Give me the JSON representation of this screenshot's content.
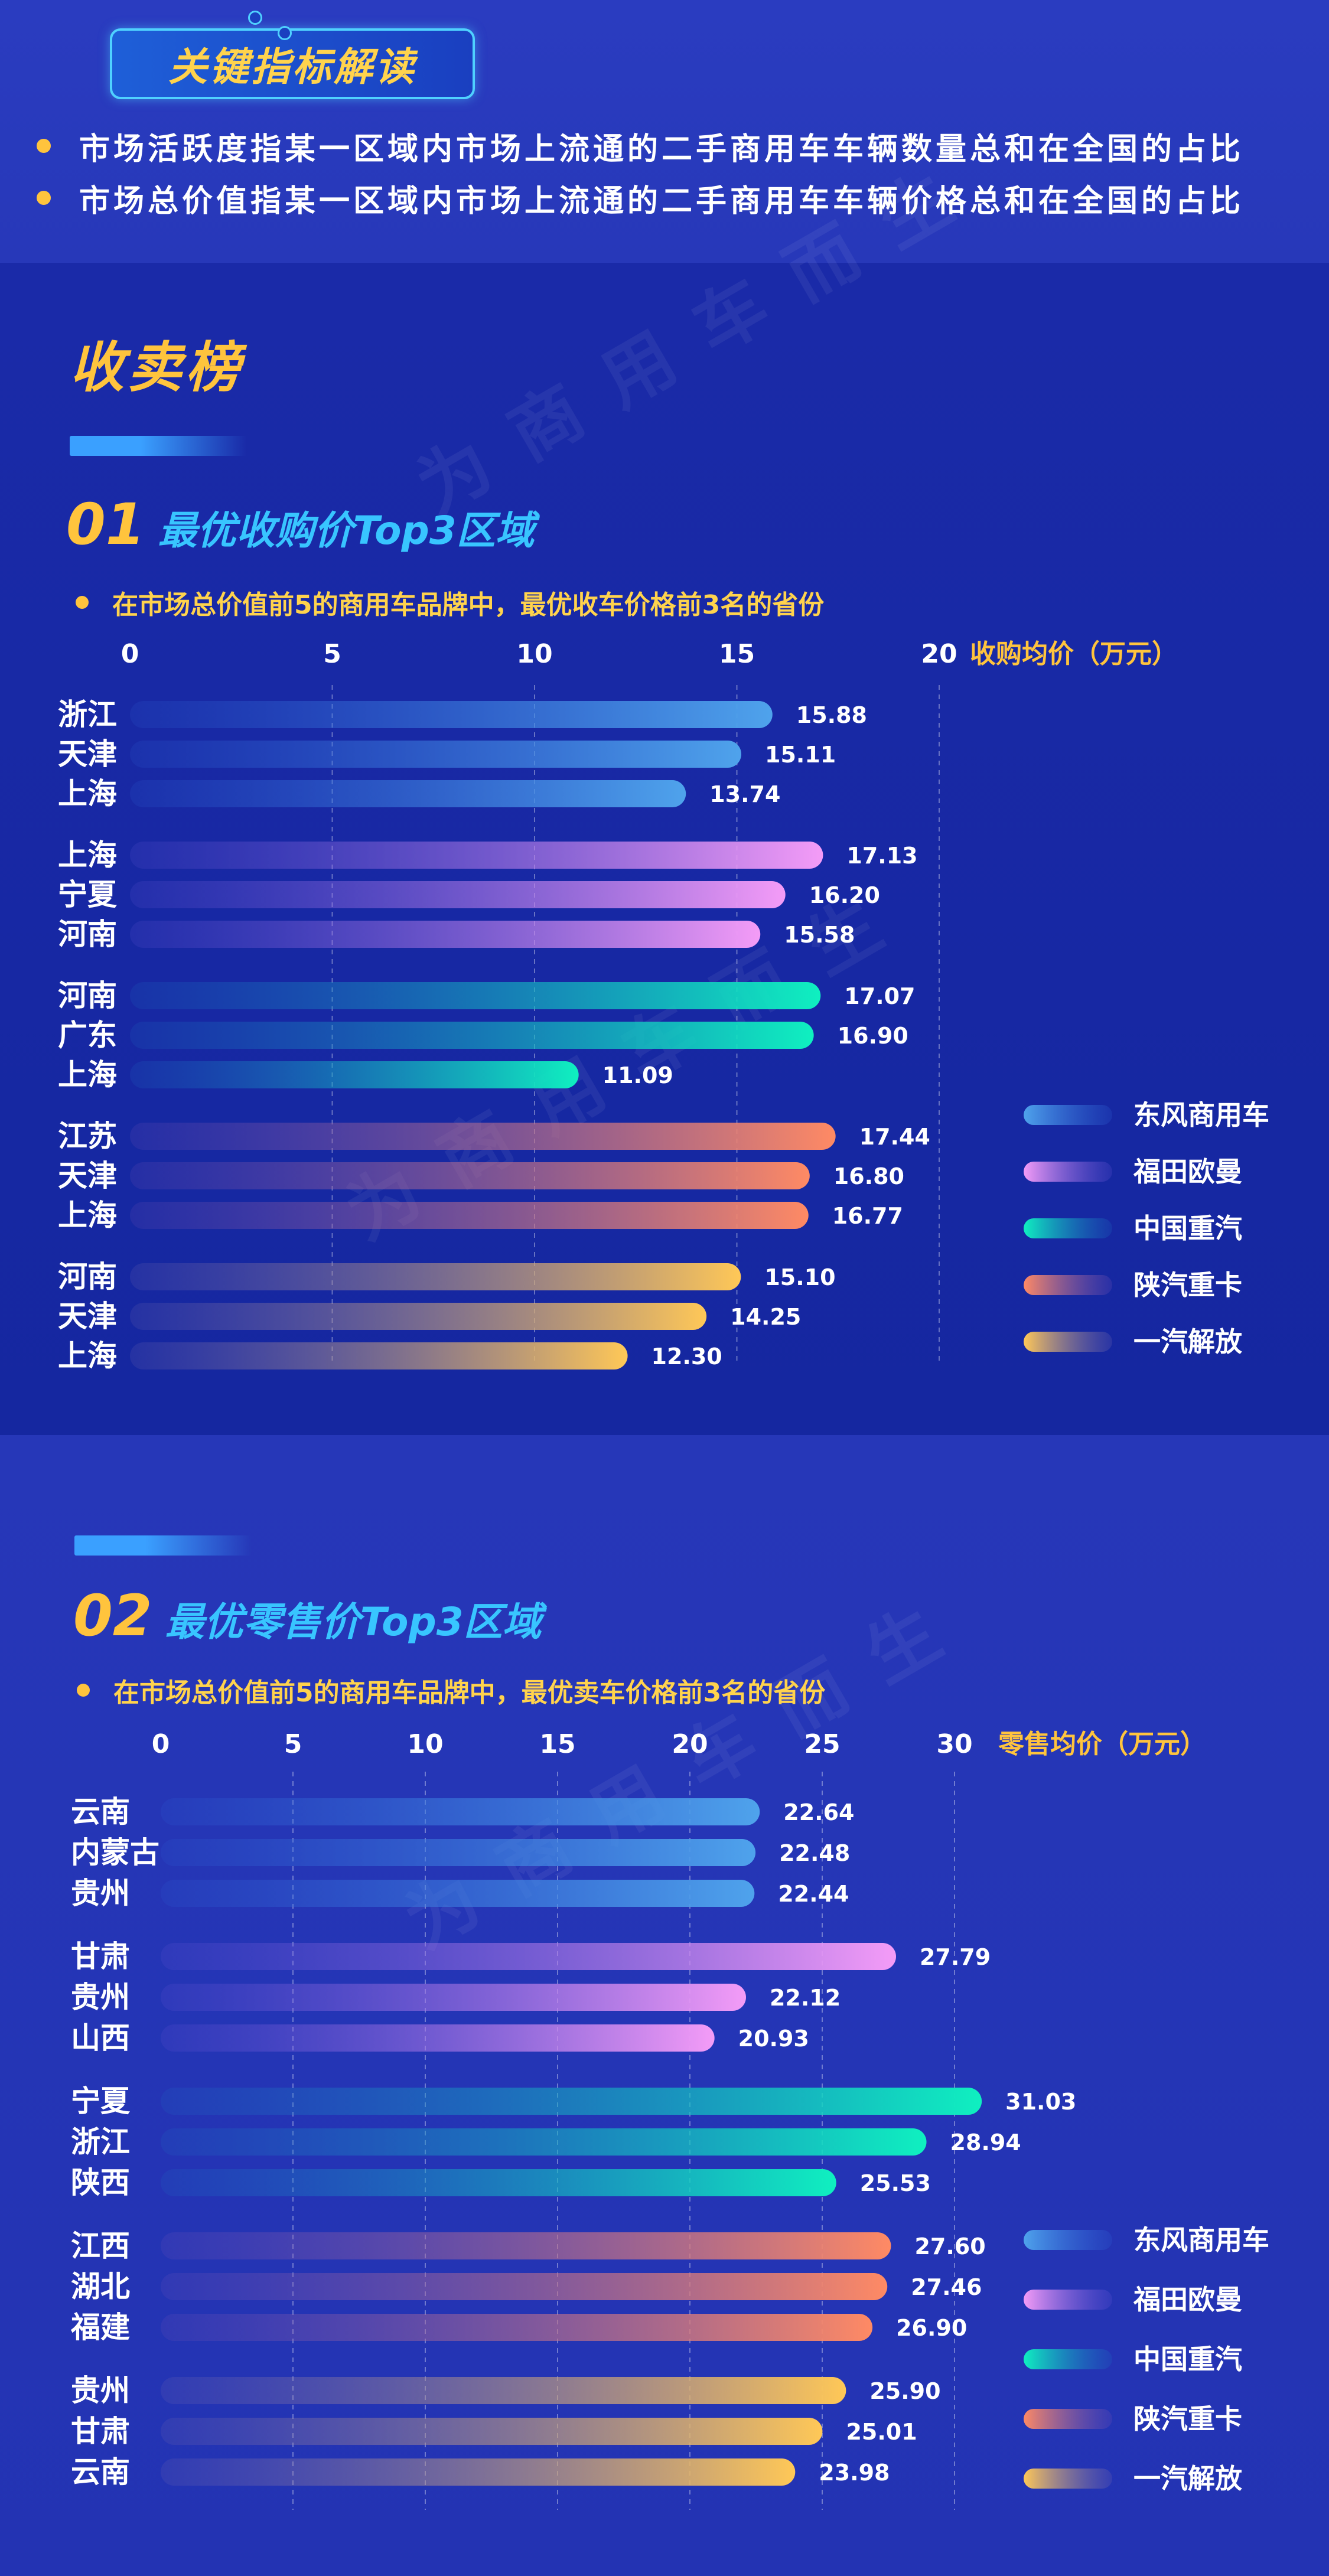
{
  "header": {
    "badge": "关键指标解读",
    "notes": [
      "市场活跃度指某一区域内市场上流通的二手商用车车辆数量总和在全国的占比",
      "市场总价值指某一区域内市场上流通的二手商用车车辆价格总和在全国的占比"
    ]
  },
  "section_title": "收卖榜",
  "watermark": "为商用车而生",
  "colors": {
    "series": [
      [
        "#2d63d6",
        "#4fa3ec"
      ],
      [
        "#6a55d8",
        "#f49cf7"
      ],
      [
        "#1d6fc4",
        "#0ff0c0"
      ],
      [
        "#7a55b8",
        "#ff8a64"
      ],
      [
        "#7e6fb0",
        "#ffc857"
      ]
    ]
  },
  "chart_data": [
    {
      "type": "bar",
      "number": "01",
      "title": "最优收购价Top3区域",
      "subtitle": "在市场总价值前5的商用车品牌中，最优收车价格前3名的省份",
      "unit_label": "收购均价（万元）",
      "xlim": [
        0,
        20
      ],
      "ticks": [
        0,
        5,
        10,
        15,
        20
      ],
      "grid": true,
      "legend_position": "right",
      "series": [
        {
          "name": "东风商用车",
          "categories": [
            "浙江",
            "天津",
            "上海"
          ],
          "values": [
            "15.88",
            "15.11",
            "13.74"
          ]
        },
        {
          "name": "福田欧曼",
          "categories": [
            "上海",
            "宁夏",
            "河南"
          ],
          "values": [
            "17.13",
            "16.20",
            "15.58"
          ]
        },
        {
          "name": "中国重汽",
          "categories": [
            "河南",
            "广东",
            "上海"
          ],
          "values": [
            "17.07",
            "16.90",
            "11.09"
          ]
        },
        {
          "name": "陕汽重卡",
          "categories": [
            "江苏",
            "天津",
            "上海"
          ],
          "values": [
            "17.44",
            "16.80",
            "16.77"
          ]
        },
        {
          "name": "一汽解放",
          "categories": [
            "河南",
            "天津",
            "上海"
          ],
          "values": [
            "15.10",
            "14.25",
            "12.30"
          ]
        }
      ]
    },
    {
      "type": "bar",
      "number": "02",
      "title": "最优零售价Top3区域",
      "subtitle": "在市场总价值前5的商用车品牌中，最优卖车价格前3名的省份",
      "unit_label": "零售均价（万元）",
      "xlim": [
        0,
        30
      ],
      "ticks": [
        0,
        5,
        10,
        15,
        20,
        25,
        30
      ],
      "grid": true,
      "legend_position": "right",
      "series": [
        {
          "name": "东风商用车",
          "categories": [
            "云南",
            "内蒙古",
            "贵州"
          ],
          "values": [
            "22.64",
            "22.48",
            "22.44"
          ]
        },
        {
          "name": "福田欧曼",
          "categories": [
            "甘肃",
            "贵州",
            "山西"
          ],
          "values": [
            "27.79",
            "22.12",
            "20.93"
          ]
        },
        {
          "name": "中国重汽",
          "categories": [
            "宁夏",
            "浙江",
            "陕西"
          ],
          "values": [
            "31.03",
            "28.94",
            "25.53"
          ]
        },
        {
          "name": "陕汽重卡",
          "categories": [
            "江西",
            "湖北",
            "福建"
          ],
          "values": [
            "27.60",
            "27.46",
            "26.90"
          ]
        },
        {
          "name": "一汽解放",
          "categories": [
            "贵州",
            "甘肃",
            "云南"
          ],
          "values": [
            "25.90",
            "25.01",
            "23.98"
          ]
        }
      ]
    }
  ]
}
